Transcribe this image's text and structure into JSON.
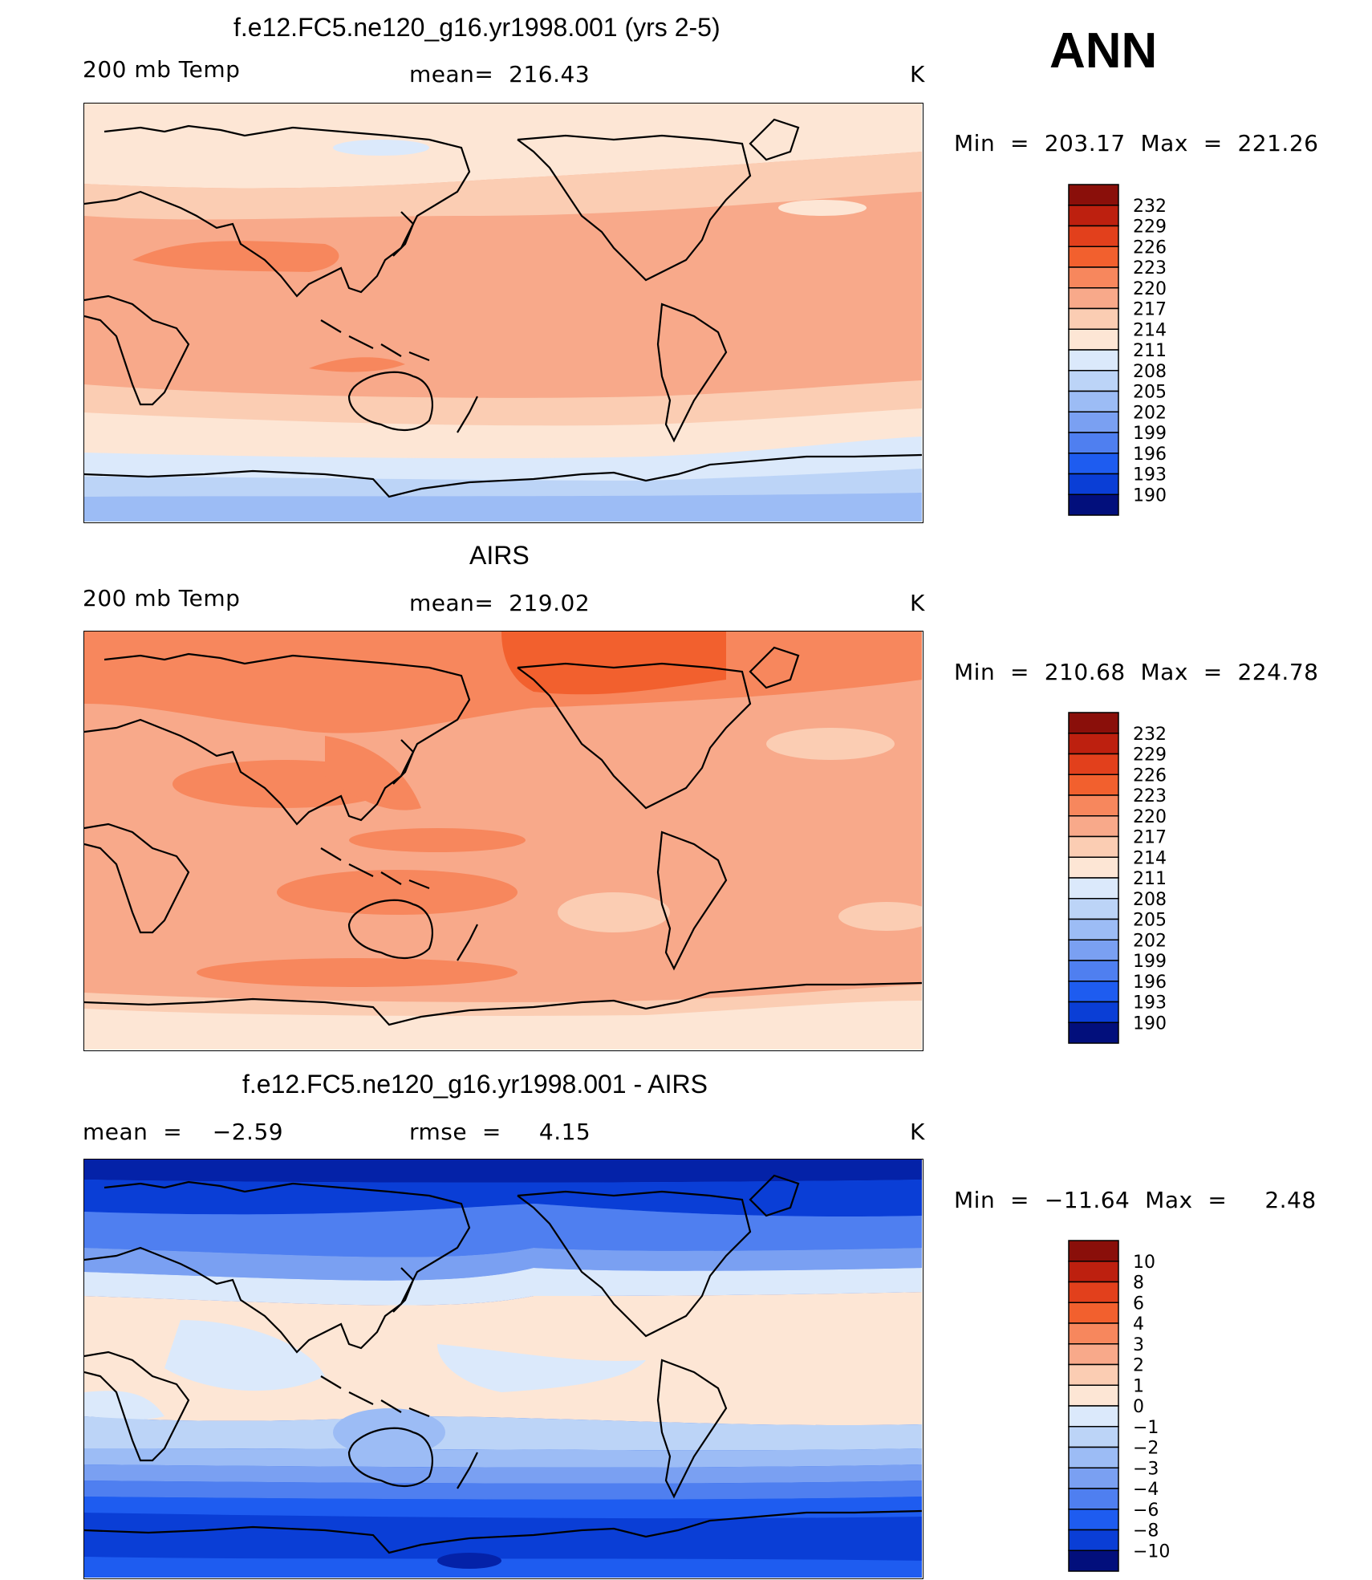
{
  "season": "ANN",
  "colors": {
    "warm": [
      "#fde6d5",
      "#fbcdb3",
      "#f8a98a",
      "#f7875d",
      "#f2602e",
      "#e2401c",
      "#bd200f",
      "#8a0f0a"
    ],
    "cool": [
      "#dbe9fb",
      "#bcd4f7",
      "#9cbcf5",
      "#7aa0f2",
      "#4f7ff0",
      "#1e5cf0",
      "#0a3ed6",
      "#0422a8",
      "#020f7c"
    ],
    "land_outline": "#000000"
  },
  "panels": [
    {
      "id": "model",
      "title": "f.e12.FC5.ne120_g16.yr1998.001 (yrs 2-5)",
      "left_label": "200 mb Temp",
      "center_label": "mean=  216.43",
      "units": "K",
      "min_max": "Min  =  203.17  Max  =  221.26"
    },
    {
      "id": "obs",
      "title": "AIRS",
      "left_label": "200 mb Temp",
      "center_label": "mean=  219.02",
      "units": "K",
      "min_max": "Min  =  210.68  Max  =  224.78"
    },
    {
      "id": "diff",
      "title": "f.e12.FC5.ne120_g16.yr1998.001 - AIRS",
      "left_label": "mean  =    −2.59",
      "center_label": "rmse  =     4.15",
      "units": "K",
      "min_max": "Min  =  −11.64  Max  =     2.48"
    }
  ],
  "chart_data": [
    {
      "type": "heatmap",
      "title": "f.e12.FC5.ne120_g16.yr1998.001 (yrs 2-5)",
      "variable": "200 mb Temp",
      "units": "K",
      "mean": 216.43,
      "min": 203.17,
      "max": 221.26,
      "colorbar_levels": [
        232,
        229,
        226,
        223,
        220,
        217,
        214,
        211,
        208,
        205,
        202,
        199,
        196,
        193,
        190
      ],
      "colorbar_colors": [
        "#8a0f0a",
        "#bd200f",
        "#e2401c",
        "#f2602e",
        "#f7875d",
        "#f8a98a",
        "#fbcdb3",
        "#fde6d5",
        "#dbe9fb",
        "#bcd4f7",
        "#9cbcf5",
        "#7aa0f2",
        "#4f7ff0",
        "#1e5cf0",
        "#0a3ed6",
        "#020f7c"
      ]
    },
    {
      "type": "heatmap",
      "title": "AIRS",
      "variable": "200 mb Temp",
      "units": "K",
      "mean": 219.02,
      "min": 210.68,
      "max": 224.78,
      "colorbar_levels": [
        232,
        229,
        226,
        223,
        220,
        217,
        214,
        211,
        208,
        205,
        202,
        199,
        196,
        193,
        190
      ],
      "colorbar_colors": [
        "#8a0f0a",
        "#bd200f",
        "#e2401c",
        "#f2602e",
        "#f7875d",
        "#f8a98a",
        "#fbcdb3",
        "#fde6d5",
        "#dbe9fb",
        "#bcd4f7",
        "#9cbcf5",
        "#7aa0f2",
        "#4f7ff0",
        "#1e5cf0",
        "#0a3ed6",
        "#020f7c"
      ]
    },
    {
      "type": "heatmap",
      "title": "f.e12.FC5.ne120_g16.yr1998.001 - AIRS",
      "units": "K",
      "mean": -2.59,
      "rmse": 4.15,
      "min": -11.64,
      "max": 2.48,
      "colorbar_levels": [
        "10",
        "8",
        "6",
        "4",
        "3",
        "2",
        "1",
        "0",
        "−1",
        "−2",
        "−3",
        "−4",
        "−6",
        "−8",
        "−10"
      ],
      "colorbar_colors": [
        "#8a0f0a",
        "#bd200f",
        "#e2401c",
        "#f2602e",
        "#f7875d",
        "#f8a98a",
        "#fbcdb3",
        "#fde6d5",
        "#dbe9fb",
        "#bcd4f7",
        "#9cbcf5",
        "#7aa0f2",
        "#4f7ff0",
        "#1e5cf0",
        "#0a3ed6",
        "#020f7c"
      ]
    }
  ]
}
